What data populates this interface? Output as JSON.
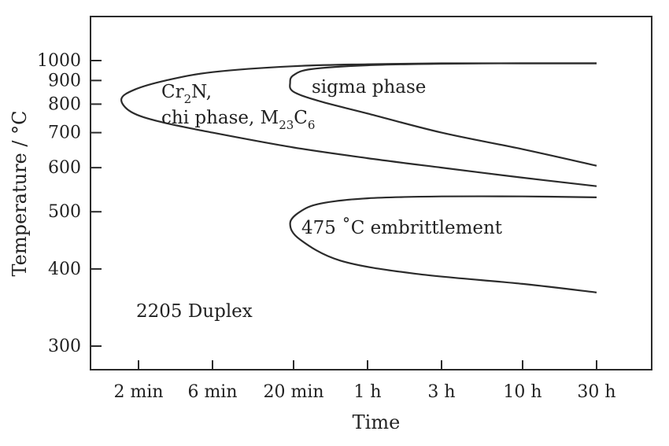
{
  "chart_data": {
    "type": "line",
    "title": "",
    "xlabel": "Time",
    "ylabel": "Temperature / °C",
    "x_scale": "log",
    "y_scale": "reciprocal",
    "x_ticks": [
      {
        "label": "2 min",
        "minutes": 2
      },
      {
        "label": "6 min",
        "minutes": 6
      },
      {
        "label": "20 min",
        "minutes": 20
      },
      {
        "label": "1 h",
        "minutes": 60
      },
      {
        "label": "3 h",
        "minutes": 180
      },
      {
        "label": "10 h",
        "minutes": 600
      },
      {
        "label": "30 h",
        "minutes": 1800
      }
    ],
    "y_ticks": [
      1000,
      900,
      800,
      700,
      600,
      500,
      400,
      300
    ],
    "ylim": [
      260,
      1150
    ],
    "material_label": "2205 Duplex",
    "regions": [
      {
        "name": "Cr2N, chi phase, M23C6",
        "label_parts": {
          "line1": "Cr",
          "line1_sub": "2",
          "line1_tail": "N,",
          "line2": "chi phase, M",
          "line2_sub1": "23",
          "line2_mid": "C",
          "line2_sub2": "6"
        },
        "upper_branch": [
          [
            1800,
            985
          ],
          [
            600,
            985
          ],
          [
            180,
            985
          ],
          [
            60,
            980
          ],
          [
            20,
            970
          ],
          [
            6,
            940
          ],
          [
            3,
            900
          ],
          [
            1.9,
            860
          ],
          [
            1.55,
            820
          ]
        ],
        "lower_branch": [
          [
            1.55,
            820
          ],
          [
            1.8,
            770
          ],
          [
            2.8,
            735
          ],
          [
            6,
            700
          ],
          [
            20,
            655
          ],
          [
            60,
            625
          ],
          [
            180,
            600
          ],
          [
            600,
            575
          ],
          [
            1800,
            555
          ]
        ]
      },
      {
        "name": "sigma phase",
        "label": "sigma phase",
        "upper_branch": [
          [
            1800,
            985
          ],
          [
            600,
            985
          ],
          [
            180,
            983
          ],
          [
            60,
            975
          ],
          [
            26,
            955
          ],
          [
            20,
            925
          ],
          [
            19,
            890
          ]
        ],
        "lower_branch": [
          [
            19,
            890
          ],
          [
            20,
            850
          ],
          [
            30,
            810
          ],
          [
            60,
            765
          ],
          [
            180,
            700
          ],
          [
            600,
            650
          ],
          [
            1800,
            605
          ]
        ]
      },
      {
        "name": "475 °C embrittlement",
        "label": "475 ˚C embrittlement",
        "upper_branch": [
          [
            1800,
            530
          ],
          [
            600,
            532
          ],
          [
            180,
            532
          ],
          [
            60,
            528
          ],
          [
            30,
            517
          ],
          [
            22,
            500
          ],
          [
            19,
            477
          ]
        ],
        "lower_branch": [
          [
            19,
            477
          ],
          [
            22,
            448
          ],
          [
            40,
            413
          ],
          [
            120,
            393
          ],
          [
            600,
            378
          ],
          [
            1800,
            366
          ]
        ]
      }
    ]
  }
}
